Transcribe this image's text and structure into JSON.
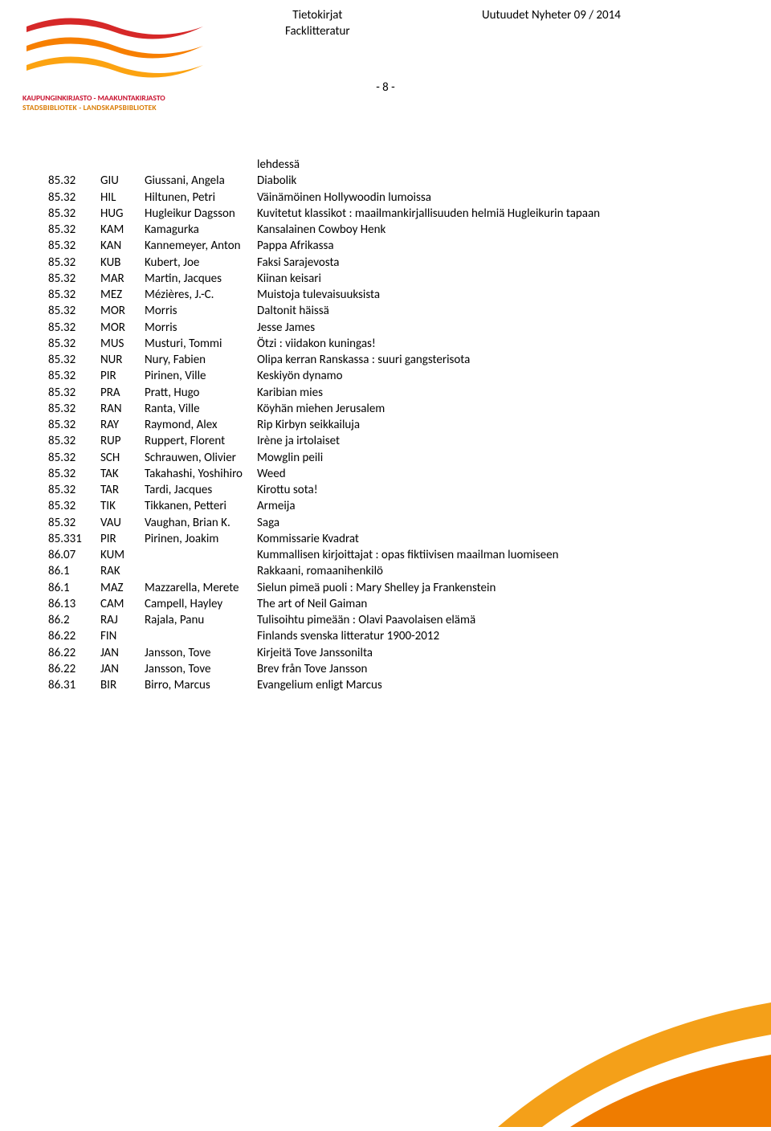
{
  "header": {
    "col1_line1": "Tietokirjat",
    "col1_line2": "Facklitteratur",
    "col2": "Uutuudet Nyheter 09 / 2014"
  },
  "logo": {
    "line1": "KAUPUNGINKIRJASTO - MAAKUNTAKIRJASTO",
    "line2": "STADSBIBLIOTEK - LANDSKAPSBIBLIOTEK",
    "wave_red": "#d62828",
    "wave_orange": "#f77f00",
    "wave_orange_light": "#fca311"
  },
  "page_number": "- 8 -",
  "continuation_title": "lehdessä",
  "rows": [
    {
      "code": "85.32",
      "abbr": "GIU",
      "author": "Giussani, Angela",
      "title": "Diabolik"
    },
    {
      "code": "85.32",
      "abbr": "HIL",
      "author": "Hiltunen, Petri",
      "title": "Väinämöinen Hollywoodin lumoissa"
    },
    {
      "code": "85.32",
      "abbr": "HUG",
      "author": "Hugleikur Dagsson",
      "title": "Kuvitetut klassikot : maailmankirjallisuuden helmiä Hugleikurin tapaan"
    },
    {
      "code": "85.32",
      "abbr": "KAM",
      "author": "Kamagurka",
      "title": "Kansalainen Cowboy Henk"
    },
    {
      "code": "85.32",
      "abbr": "KAN",
      "author": "Kannemeyer, Anton",
      "title": "Pappa Afrikassa"
    },
    {
      "code": "85.32",
      "abbr": "KUB",
      "author": "Kubert, Joe",
      "title": "Faksi Sarajevosta"
    },
    {
      "code": "85.32",
      "abbr": "MAR",
      "author": "Martin, Jacques",
      "title": "Kiinan keisari"
    },
    {
      "code": "85.32",
      "abbr": "MEZ",
      "author": "Mézières, J.-C.",
      "title": "Muistoja tulevaisuuksista"
    },
    {
      "code": "85.32",
      "abbr": "MOR",
      "author": "Morris",
      "title": "Daltonit häissä"
    },
    {
      "code": "85.32",
      "abbr": "MOR",
      "author": "Morris",
      "title": "Jesse James"
    },
    {
      "code": "85.32",
      "abbr": "MUS",
      "author": "Musturi, Tommi",
      "title": "Ötzi : viidakon kuningas!"
    },
    {
      "code": "85.32",
      "abbr": "NUR",
      "author": "Nury, Fabien",
      "title": "Olipa kerran Ranskassa : suuri gangsterisota"
    },
    {
      "code": "85.32",
      "abbr": "PIR",
      "author": "Pirinen, Ville",
      "title": "Keskiyön dynamo"
    },
    {
      "code": "85.32",
      "abbr": "PRA",
      "author": "Pratt, Hugo",
      "title": "Karibian mies"
    },
    {
      "code": "85.32",
      "abbr": "RAN",
      "author": "Ranta, Ville",
      "title": "Köyhän miehen Jerusalem"
    },
    {
      "code": "85.32",
      "abbr": "RAY",
      "author": "Raymond, Alex",
      "title": "Rip Kirbyn seikkailuja"
    },
    {
      "code": "85.32",
      "abbr": "RUP",
      "author": "Ruppert, Florent",
      "title": "Irène ja irtolaiset"
    },
    {
      "code": "85.32",
      "abbr": "SCH",
      "author": "Schrauwen, Olivier",
      "title": "Mowglin peili"
    },
    {
      "code": "85.32",
      "abbr": "TAK",
      "author": "Takahashi, Yoshihiro",
      "title": "Weed"
    },
    {
      "code": "85.32",
      "abbr": "TAR",
      "author": "Tardi, Jacques",
      "title": "Kirottu sota!"
    },
    {
      "code": "85.32",
      "abbr": "TIK",
      "author": "Tikkanen, Petteri",
      "title": "Armeija"
    },
    {
      "code": "85.32",
      "abbr": "VAU",
      "author": "Vaughan, Brian K.",
      "title": "Saga"
    },
    {
      "code": "85.331",
      "abbr": "PIR",
      "author": "Pirinen, Joakim",
      "title": "Kommissarie Kvadrat"
    },
    {
      "code": "86.07",
      "abbr": "KUM",
      "author": "",
      "title": "Kummallisen kirjoittajat : opas fiktiivisen maailman luomiseen"
    },
    {
      "code": "86.1",
      "abbr": "RAK",
      "author": "",
      "title": "Rakkaani, romaanihenkilö"
    },
    {
      "code": "86.1",
      "abbr": "MAZ",
      "author": "Mazzarella, Merete",
      "title": "Sielun pimeä puoli : Mary Shelley ja Frankenstein"
    },
    {
      "code": "86.13",
      "abbr": "CAM",
      "author": "Campell, Hayley",
      "title": "The art of Neil Gaiman"
    },
    {
      "code": "86.2",
      "abbr": "RAJ",
      "author": "Rajala, Panu",
      "title": "Tulisoihtu pimeään : Olavi Paavolaisen elämä"
    },
    {
      "code": "86.22",
      "abbr": "FIN",
      "author": "",
      "title": "Finlands svenska litteratur 1900-2012"
    },
    {
      "code": "86.22",
      "abbr": "JAN",
      "author": "Jansson, Tove",
      "title": "Kirjeitä Tove Janssonilta"
    },
    {
      "code": "86.22",
      "abbr": "JAN",
      "author": "Jansson, Tove",
      "title": "Brev från Tove Jansson"
    },
    {
      "code": "86.31",
      "abbr": "BIR",
      "author": "Birro, Marcus",
      "title": "Evangelium enligt Marcus"
    }
  ],
  "swoosh": {
    "colors": [
      "#f4a019",
      "#ef7c00",
      "#ffffff"
    ]
  }
}
